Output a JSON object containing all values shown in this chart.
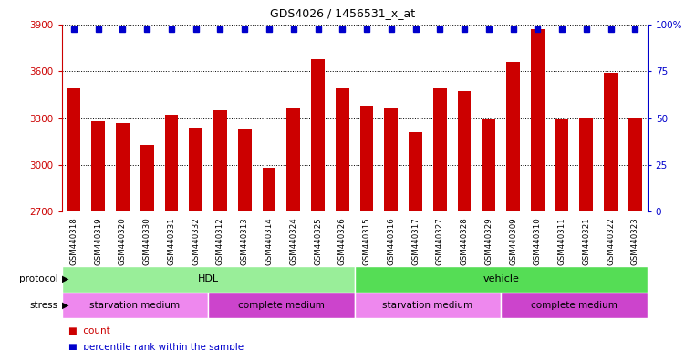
{
  "title": "GDS4026 / 1456531_x_at",
  "samples": [
    "GSM440318",
    "GSM440319",
    "GSM440320",
    "GSM440330",
    "GSM440331",
    "GSM440332",
    "GSM440312",
    "GSM440313",
    "GSM440314",
    "GSM440324",
    "GSM440325",
    "GSM440326",
    "GSM440315",
    "GSM440316",
    "GSM440317",
    "GSM440327",
    "GSM440328",
    "GSM440329",
    "GSM440309",
    "GSM440310",
    "GSM440311",
    "GSM440321",
    "GSM440322",
    "GSM440323"
  ],
  "counts": [
    3490,
    3280,
    3270,
    3130,
    3320,
    3240,
    3350,
    3230,
    2980,
    3360,
    3680,
    3490,
    3380,
    3370,
    3210,
    3490,
    3470,
    3290,
    3660,
    3870,
    3290,
    3300,
    3590,
    3300
  ],
  "ylim_left": [
    2700,
    3900
  ],
  "ylim_right": [
    0,
    100
  ],
  "yticks_left": [
    2700,
    3000,
    3300,
    3600,
    3900
  ],
  "yticks_right": [
    0,
    25,
    50,
    75,
    100
  ],
  "bar_color": "#cc0000",
  "dot_color": "#0000cc",
  "protocol_groups": [
    {
      "label": "HDL",
      "start": 0,
      "end": 11,
      "color": "#99ee99"
    },
    {
      "label": "vehicle",
      "start": 12,
      "end": 23,
      "color": "#55dd55"
    }
  ],
  "stress_groups": [
    {
      "label": "starvation medium",
      "start": 0,
      "end": 5,
      "color": "#ee88ee"
    },
    {
      "label": "complete medium",
      "start": 6,
      "end": 11,
      "color": "#cc44cc"
    },
    {
      "label": "starvation medium",
      "start": 12,
      "end": 17,
      "color": "#ee88ee"
    },
    {
      "label": "complete medium",
      "start": 18,
      "end": 23,
      "color": "#cc44cc"
    }
  ],
  "protocol_label": "protocol",
  "stress_label": "stress",
  "legend_count_label": "count",
  "legend_pct_label": "percentile rank within the sample",
  "background_color": "#ffffff",
  "bar_width": 0.55,
  "fig_width": 7.51,
  "fig_height": 3.84,
  "fig_dpi": 100
}
